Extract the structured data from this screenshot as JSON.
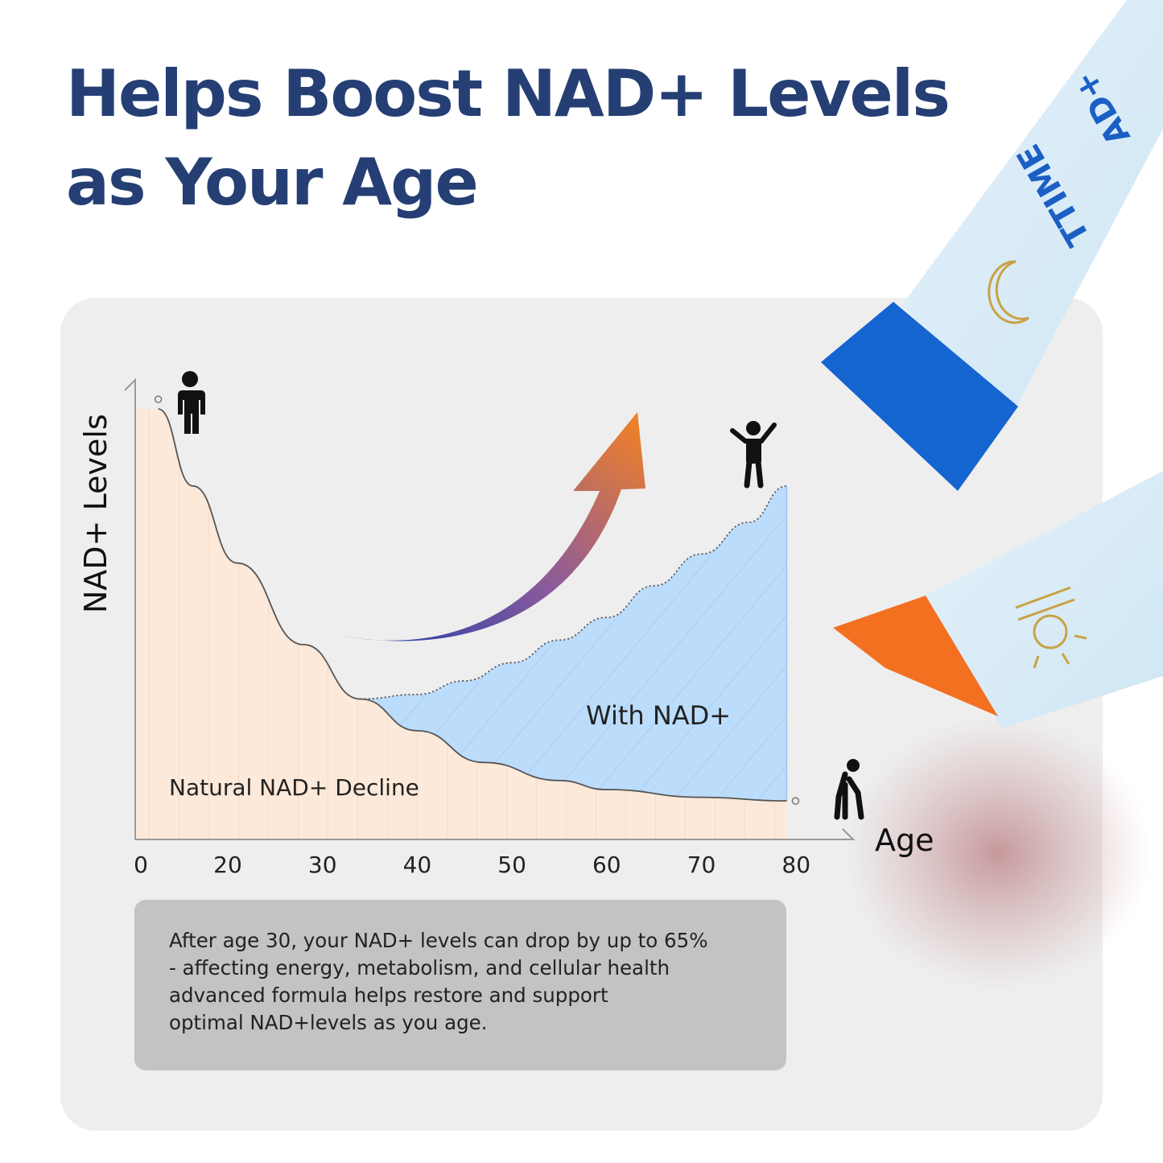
{
  "title": {
    "line1": "Helps Boost NAD+ Levels",
    "line2": "as Your Age"
  },
  "product": {
    "packet_text_1": "AD+",
    "packet_text_2": "TTIME",
    "packet_top_icon": "moon-zzz-icon",
    "packet_bottom_icon": "sun-icon"
  },
  "caption": {
    "lines": [
      "After age 30, your NAD+ levels can drop by up to 65%",
      "- affecting energy, metabolism, and cellular health",
      "advanced formula helps restore and support",
      "optimal NAD+levels as you age."
    ]
  },
  "colors": {
    "title": "#253f74",
    "decline_fill": "#fde9d9",
    "nad_fill": "#bcdcfb",
    "arrow_start": "#1f3da8",
    "arrow_end": "#f58220",
    "packet_blue": "#1565d0",
    "packet_orange": "#f37021"
  },
  "chart_data": {
    "type": "area",
    "xlabel": "Age",
    "ylabel": "NAD+ Levels",
    "x_ticks": [
      0,
      20,
      30,
      40,
      50,
      60,
      70,
      80
    ],
    "xlim": [
      0,
      85
    ],
    "ylim": [
      0,
      100
    ],
    "grid": false,
    "series": [
      {
        "name": "Natural NAD+ Decline",
        "points": [
          [
            4,
            95
          ],
          [
            12,
            78
          ],
          [
            21,
            61
          ],
          [
            28,
            43
          ],
          [
            34,
            31
          ],
          [
            40,
            24
          ],
          [
            47,
            17
          ],
          [
            55,
            13
          ],
          [
            60,
            11
          ],
          [
            70,
            9.3
          ],
          [
            79,
            8.5
          ]
        ]
      },
      {
        "name": "With NAD+",
        "points": [
          [
            34,
            31
          ],
          [
            40,
            32
          ],
          [
            45,
            35
          ],
          [
            50,
            39
          ],
          [
            55,
            44
          ],
          [
            60,
            49
          ],
          [
            65,
            56
          ],
          [
            70,
            63
          ],
          [
            75,
            70
          ],
          [
            79,
            78
          ]
        ]
      }
    ],
    "icons": [
      "child-figure-icon",
      "adult-figure-icon",
      "elderly-figure-icon",
      "upward-arrow-icon"
    ]
  }
}
